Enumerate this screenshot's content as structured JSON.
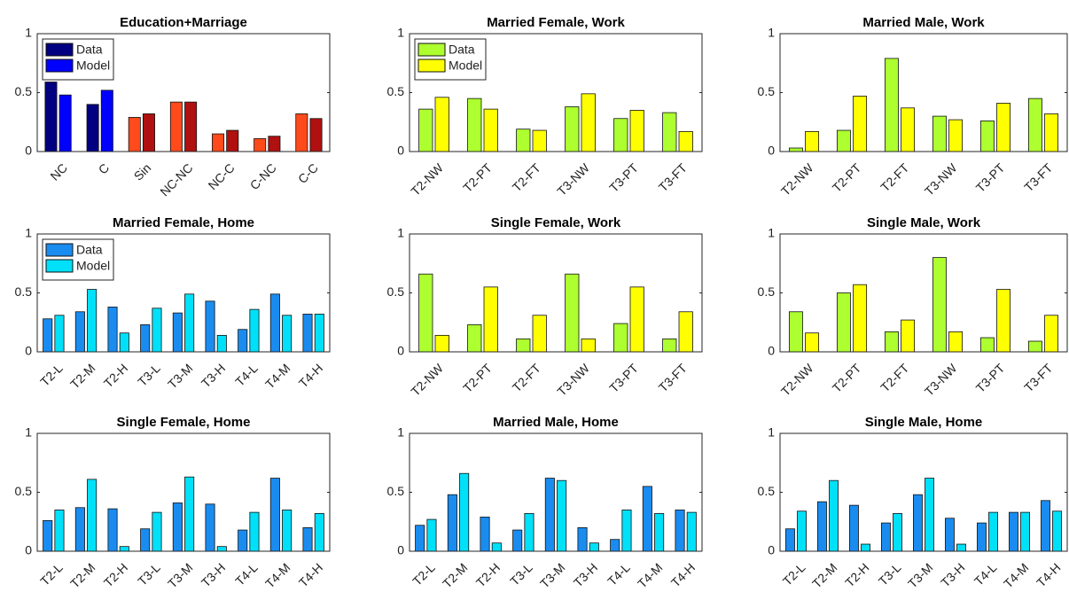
{
  "chart_data": [
    {
      "type": "bar",
      "title": "Education+Marriage",
      "categories": [
        "NC",
        "C",
        "Sin",
        "NC-NC",
        "NC-C",
        "C-NC",
        "C-C"
      ],
      "series": [
        {
          "name": "Data",
          "color": "#000080",
          "bar_colors": [
            "#000080",
            "#000080",
            "#ff4a1c",
            "#ff4a1c",
            "#ff4a1c",
            "#ff4a1c",
            "#ff4a1c"
          ],
          "values": [
            0.59,
            0.4,
            0.29,
            0.42,
            0.15,
            0.11,
            0.32
          ]
        },
        {
          "name": "Model",
          "color": "#0000ff",
          "bar_colors": [
            "#0000ff",
            "#0000ff",
            "#b01010",
            "#b01010",
            "#b01010",
            "#b01010",
            "#b01010"
          ],
          "values": [
            0.48,
            0.52,
            0.32,
            0.42,
            0.18,
            0.13,
            0.28
          ]
        }
      ],
      "ylim": [
        0,
        1
      ],
      "yticks": [
        0,
        0.5,
        1
      ],
      "legend": "upper left"
    },
    {
      "type": "bar",
      "title": "Married Female, Work",
      "categories": [
        "T2-NW",
        "T2-PT",
        "T2-FT",
        "T3-NW",
        "T3-PT",
        "T3-FT"
      ],
      "series": [
        {
          "name": "Data",
          "color": "#adff2f",
          "values": [
            0.36,
            0.45,
            0.19,
            0.38,
            0.28,
            0.33
          ]
        },
        {
          "name": "Model",
          "color": "#ffff00",
          "values": [
            0.46,
            0.36,
            0.18,
            0.49,
            0.35,
            0.17
          ]
        }
      ],
      "ylim": [
        0,
        1
      ],
      "yticks": [
        0,
        0.5,
        1
      ],
      "legend": "upper left"
    },
    {
      "type": "bar",
      "title": "Married Male, Work",
      "categories": [
        "T2-NW",
        "T2-PT",
        "T2-FT",
        "T3-NW",
        "T3-PT",
        "T3-FT"
      ],
      "series": [
        {
          "color": "#adff2f",
          "values": [
            0.03,
            0.18,
            0.79,
            0.3,
            0.26,
            0.45
          ]
        },
        {
          "color": "#ffff00",
          "values": [
            0.17,
            0.47,
            0.37,
            0.27,
            0.41,
            0.32
          ]
        }
      ],
      "ylim": [
        0,
        1
      ],
      "yticks": [
        0,
        0.5,
        1
      ]
    },
    {
      "type": "bar",
      "title": "Married Female, Home",
      "categories": [
        "T2-L",
        "T2-M",
        "T2-H",
        "T3-L",
        "T3-M",
        "T3-H",
        "T4-L",
        "T4-M",
        "T4-H"
      ],
      "series": [
        {
          "name": "Data",
          "color": "#1a8cf0",
          "values": [
            0.28,
            0.34,
            0.38,
            0.23,
            0.33,
            0.43,
            0.19,
            0.49,
            0.32
          ]
        },
        {
          "name": "Model",
          "color": "#00e0f8",
          "values": [
            0.31,
            0.53,
            0.16,
            0.37,
            0.49,
            0.14,
            0.36,
            0.31,
            0.32
          ]
        }
      ],
      "ylim": [
        0,
        1
      ],
      "yticks": [
        0,
        0.5,
        1
      ],
      "legend": "upper left"
    },
    {
      "type": "bar",
      "title": "Single Female, Work",
      "categories": [
        "T2-NW",
        "T2-PT",
        "T2-FT",
        "T3-NW",
        "T3-PT",
        "T3-FT"
      ],
      "series": [
        {
          "color": "#adff2f",
          "values": [
            0.66,
            0.23,
            0.11,
            0.66,
            0.24,
            0.11
          ]
        },
        {
          "color": "#ffff00",
          "values": [
            0.14,
            0.55,
            0.31,
            0.11,
            0.55,
            0.34
          ]
        }
      ],
      "ylim": [
        0,
        1
      ],
      "yticks": [
        0,
        0.5,
        1
      ]
    },
    {
      "type": "bar",
      "title": "Single Male, Work",
      "categories": [
        "T2-NW",
        "T2-PT",
        "T2-FT",
        "T3-NW",
        "T3-PT",
        "T3-FT"
      ],
      "series": [
        {
          "color": "#adff2f",
          "values": [
            0.34,
            0.5,
            0.17,
            0.8,
            0.12,
            0.09
          ]
        },
        {
          "color": "#ffff00",
          "values": [
            0.16,
            0.57,
            0.27,
            0.17,
            0.53,
            0.31
          ]
        }
      ],
      "ylim": [
        0,
        1
      ],
      "yticks": [
        0,
        0.5,
        1
      ]
    },
    {
      "type": "bar",
      "title": "Single Female, Home",
      "categories": [
        "T2-L",
        "T2-M",
        "T2-H",
        "T3-L",
        "T3-M",
        "T3-H",
        "T4-L",
        "T4-M",
        "T4-H"
      ],
      "series": [
        {
          "color": "#1a8cf0",
          "values": [
            0.26,
            0.37,
            0.36,
            0.19,
            0.41,
            0.4,
            0.18,
            0.62,
            0.2
          ]
        },
        {
          "color": "#00e0f8",
          "values": [
            0.35,
            0.61,
            0.04,
            0.33,
            0.63,
            0.04,
            0.33,
            0.35,
            0.32
          ]
        }
      ],
      "ylim": [
        0,
        1
      ],
      "yticks": [
        0,
        0.5,
        1
      ]
    },
    {
      "type": "bar",
      "title": "Married Male, Home",
      "categories": [
        "T2-L",
        "T2-M",
        "T2-H",
        "T3-L",
        "T3-M",
        "T3-H",
        "T4-L",
        "T4-M",
        "T4-H"
      ],
      "series": [
        {
          "color": "#1a8cf0",
          "values": [
            0.22,
            0.48,
            0.29,
            0.18,
            0.62,
            0.2,
            0.1,
            0.55,
            0.35
          ]
        },
        {
          "color": "#00e0f8",
          "values": [
            0.27,
            0.66,
            0.07,
            0.32,
            0.6,
            0.07,
            0.35,
            0.32,
            0.33
          ]
        }
      ],
      "ylim": [
        0,
        1
      ],
      "yticks": [
        0,
        0.5,
        1
      ]
    },
    {
      "type": "bar",
      "title": "Single Male, Home",
      "categories": [
        "T2-L",
        "T2-M",
        "T2-H",
        "T3-L",
        "T3-M",
        "T3-H",
        "T4-L",
        "T4-M",
        "T4-H"
      ],
      "series": [
        {
          "color": "#1a8cf0",
          "values": [
            0.19,
            0.42,
            0.39,
            0.24,
            0.48,
            0.28,
            0.24,
            0.33,
            0.43
          ]
        },
        {
          "color": "#00e0f8",
          "values": [
            0.34,
            0.6,
            0.06,
            0.32,
            0.62,
            0.06,
            0.33,
            0.33,
            0.34
          ]
        }
      ],
      "ylim": [
        0,
        1
      ],
      "yticks": [
        0,
        0.5,
        1
      ]
    }
  ]
}
